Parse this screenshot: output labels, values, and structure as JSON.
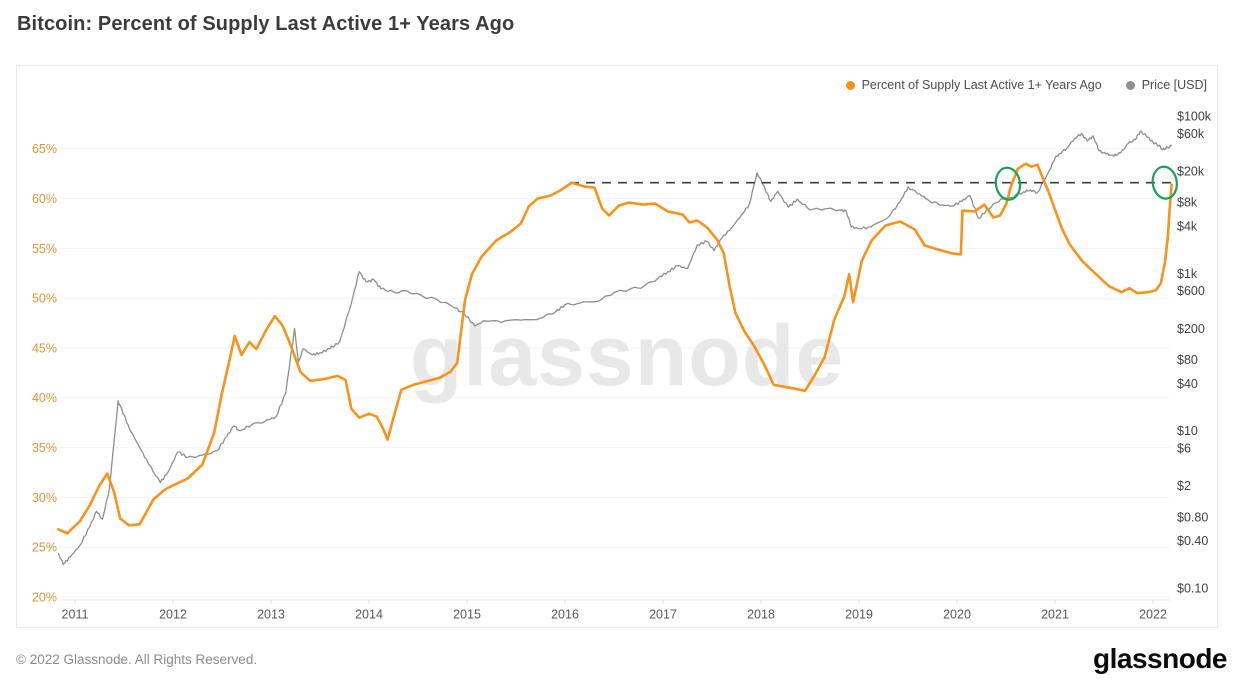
{
  "page": {
    "title": "Bitcoin: Percent of Supply Last Active 1+ Years Ago",
    "watermark": "glassnode",
    "footer_copyright": "© 2022 Glassnode. All Rights Reserved.",
    "brand_wordmark": "glassnode"
  },
  "legend": {
    "items": [
      {
        "label": "Percent of Supply Last Active 1+ Years Ago",
        "color": "#f7931a"
      },
      {
        "label": "Price [USD]",
        "color": "#8f8f8f"
      }
    ]
  },
  "chart_data": {
    "type": "line",
    "title": "Bitcoin: Percent of Supply Last Active 1+ Years Ago",
    "grid": {
      "horizontal": true,
      "vertical": false,
      "color": "#f3f3f3"
    },
    "x_axis": {
      "ticks": [
        2011,
        2012,
        2013,
        2014,
        2015,
        2016,
        2017,
        2018,
        2019,
        2020,
        2021,
        2022
      ],
      "range": [
        2010.82,
        2022.25
      ],
      "color": "#55585e"
    },
    "left_axis": {
      "title": "Percent of Supply Last Active 1+ Years Ago",
      "scale": "linear",
      "unit": "percent",
      "range": [
        20,
        65
      ],
      "color": "#df9539",
      "ticks": [
        {
          "value": 20,
          "label": "20%"
        },
        {
          "value": 25,
          "label": "25%"
        },
        {
          "value": 30,
          "label": "30%"
        },
        {
          "value": 35,
          "label": "35%"
        },
        {
          "value": 40,
          "label": "40%"
        },
        {
          "value": 45,
          "label": "45%"
        },
        {
          "value": 50,
          "label": "50%"
        },
        {
          "value": 55,
          "label": "55%"
        },
        {
          "value": 60,
          "label": "60%"
        },
        {
          "value": 65,
          "label": "65%"
        }
      ]
    },
    "right_axis": {
      "title": "Price [USD]",
      "scale": "log",
      "unit": "USD",
      "range": [
        0.1,
        100000
      ],
      "color": "#3c3f45",
      "ticks": [
        {
          "value": 100000,
          "label": "$100k"
        },
        {
          "value": 60000,
          "label": "$60k"
        },
        {
          "value": 20000,
          "label": "$20k"
        },
        {
          "value": 8000,
          "label": "$8k"
        },
        {
          "value": 4000,
          "label": "$4k"
        },
        {
          "value": 1000,
          "label": "$1k"
        },
        {
          "value": 600,
          "label": "$600"
        },
        {
          "value": 200,
          "label": "$200"
        },
        {
          "value": 80,
          "label": "$80"
        },
        {
          "value": 40,
          "label": "$40"
        },
        {
          "value": 10,
          "label": "$10"
        },
        {
          "value": 6,
          "label": "$6"
        },
        {
          "value": 2,
          "label": "$2"
        },
        {
          "value": 0.8,
          "label": "$0.80"
        },
        {
          "value": 0.4,
          "label": "$0.40"
        },
        {
          "value": 0.1,
          "label": "$0.10"
        }
      ]
    },
    "series": [
      {
        "name": "Percent of Supply Last Active 1+ Years Ago",
        "axis": "left",
        "color": "#f7931a",
        "width": 2.6,
        "points": [
          [
            2010.83,
            26.8
          ],
          [
            2010.92,
            26.4
          ],
          [
            2011.05,
            27.6
          ],
          [
            2011.15,
            29.2
          ],
          [
            2011.25,
            31.2
          ],
          [
            2011.33,
            32.4
          ],
          [
            2011.4,
            30.5
          ],
          [
            2011.46,
            27.9
          ],
          [
            2011.55,
            27.2
          ],
          [
            2011.66,
            27.3
          ],
          [
            2011.8,
            29.8
          ],
          [
            2011.92,
            30.8
          ],
          [
            2012.0,
            31.2
          ],
          [
            2012.15,
            31.9
          ],
          [
            2012.3,
            33.3
          ],
          [
            2012.42,
            36.5
          ],
          [
            2012.5,
            40.5
          ],
          [
            2012.57,
            43.5
          ],
          [
            2012.63,
            46.2
          ],
          [
            2012.7,
            44.3
          ],
          [
            2012.78,
            45.6
          ],
          [
            2012.85,
            44.9
          ],
          [
            2012.95,
            46.8
          ],
          [
            2013.04,
            48.2
          ],
          [
            2013.12,
            47.2
          ],
          [
            2013.2,
            45.3
          ],
          [
            2013.3,
            42.6
          ],
          [
            2013.4,
            41.7
          ],
          [
            2013.55,
            41.9
          ],
          [
            2013.68,
            42.2
          ],
          [
            2013.76,
            41.8
          ],
          [
            2013.82,
            38.9
          ],
          [
            2013.9,
            38.0
          ],
          [
            2014.0,
            38.4
          ],
          [
            2014.08,
            38.1
          ],
          [
            2014.14,
            37.0
          ],
          [
            2014.19,
            35.8
          ],
          [
            2014.25,
            38.0
          ],
          [
            2014.33,
            40.8
          ],
          [
            2014.45,
            41.3
          ],
          [
            2014.6,
            41.7
          ],
          [
            2014.72,
            42.0
          ],
          [
            2014.83,
            42.6
          ],
          [
            2014.9,
            43.5
          ],
          [
            2014.98,
            49.8
          ],
          [
            2015.05,
            52.4
          ],
          [
            2015.15,
            54.2
          ],
          [
            2015.3,
            55.8
          ],
          [
            2015.45,
            56.7
          ],
          [
            2015.55,
            57.5
          ],
          [
            2015.63,
            59.2
          ],
          [
            2015.72,
            60.0
          ],
          [
            2015.85,
            60.3
          ],
          [
            2015.95,
            60.8
          ],
          [
            2016.07,
            61.6
          ],
          [
            2016.2,
            61.2
          ],
          [
            2016.3,
            61.1
          ],
          [
            2016.38,
            59.0
          ],
          [
            2016.45,
            58.3
          ],
          [
            2016.55,
            59.3
          ],
          [
            2016.65,
            59.6
          ],
          [
            2016.8,
            59.4
          ],
          [
            2016.92,
            59.5
          ],
          [
            2017.05,
            58.7
          ],
          [
            2017.2,
            58.4
          ],
          [
            2017.27,
            57.6
          ],
          [
            2017.35,
            57.8
          ],
          [
            2017.45,
            57.1
          ],
          [
            2017.55,
            55.9
          ],
          [
            2017.62,
            54.5
          ],
          [
            2017.68,
            51.2
          ],
          [
            2017.74,
            48.5
          ],
          [
            2017.83,
            46.7
          ],
          [
            2017.93,
            45.2
          ],
          [
            2018.03,
            43.4
          ],
          [
            2018.13,
            41.3
          ],
          [
            2018.3,
            41.0
          ],
          [
            2018.45,
            40.7
          ],
          [
            2018.55,
            42.3
          ],
          [
            2018.65,
            44.1
          ],
          [
            2018.75,
            47.9
          ],
          [
            2018.85,
            50.2
          ],
          [
            2018.9,
            52.4
          ],
          [
            2018.94,
            49.6
          ],
          [
            2019.03,
            53.8
          ],
          [
            2019.13,
            55.8
          ],
          [
            2019.27,
            57.3
          ],
          [
            2019.42,
            57.7
          ],
          [
            2019.57,
            56.9
          ],
          [
            2019.67,
            55.3
          ],
          [
            2019.8,
            54.9
          ],
          [
            2019.95,
            54.5
          ],
          [
            2020.04,
            54.4
          ],
          [
            2020.055,
            58.8
          ],
          [
            2020.18,
            58.7
          ],
          [
            2020.28,
            59.4
          ],
          [
            2020.37,
            58.1
          ],
          [
            2020.44,
            58.3
          ],
          [
            2020.5,
            59.4
          ],
          [
            2020.55,
            61.2
          ],
          [
            2020.62,
            63.0
          ],
          [
            2020.7,
            63.5
          ],
          [
            2020.76,
            63.2
          ],
          [
            2020.82,
            63.4
          ],
          [
            2020.87,
            62.2
          ],
          [
            2020.93,
            60.8
          ],
          [
            2021.0,
            58.9
          ],
          [
            2021.07,
            57.0
          ],
          [
            2021.15,
            55.4
          ],
          [
            2021.28,
            53.7
          ],
          [
            2021.42,
            52.4
          ],
          [
            2021.55,
            51.2
          ],
          [
            2021.68,
            50.6
          ],
          [
            2021.76,
            51.0
          ],
          [
            2021.84,
            50.5
          ],
          [
            2021.95,
            50.6
          ],
          [
            2022.03,
            50.8
          ],
          [
            2022.08,
            51.5
          ],
          [
            2022.12,
            53.5
          ],
          [
            2022.15,
            56.0
          ],
          [
            2022.17,
            59.0
          ],
          [
            2022.19,
            61.4
          ]
        ]
      },
      {
        "name": "Price [USD]",
        "axis": "right",
        "color": "#8e8e8e",
        "width": 1.3,
        "points": [
          [
            2010.83,
            0.28
          ],
          [
            2010.88,
            0.2
          ],
          [
            2010.95,
            0.25
          ],
          [
            2011.05,
            0.35
          ],
          [
            2011.15,
            0.6
          ],
          [
            2011.22,
            0.95
          ],
          [
            2011.28,
            0.75
          ],
          [
            2011.35,
            1.8
          ],
          [
            2011.44,
            24
          ],
          [
            2011.5,
            16
          ],
          [
            2011.55,
            11
          ],
          [
            2011.65,
            6.5
          ],
          [
            2011.75,
            3.8
          ],
          [
            2011.87,
            2.2
          ],
          [
            2011.95,
            3.0
          ],
          [
            2012.05,
            5.4
          ],
          [
            2012.15,
            4.6
          ],
          [
            2012.3,
            4.9
          ],
          [
            2012.45,
            5.6
          ],
          [
            2012.55,
            8.5
          ],
          [
            2012.62,
            11.5
          ],
          [
            2012.68,
            10.0
          ],
          [
            2012.8,
            11.8
          ],
          [
            2012.95,
            13.5
          ],
          [
            2013.05,
            15
          ],
          [
            2013.15,
            30
          ],
          [
            2013.24,
            200
          ],
          [
            2013.28,
            75
          ],
          [
            2013.33,
            110
          ],
          [
            2013.42,
            92
          ],
          [
            2013.5,
            98
          ],
          [
            2013.6,
            110
          ],
          [
            2013.7,
            135
          ],
          [
            2013.82,
            420
          ],
          [
            2013.9,
            1050
          ],
          [
            2013.97,
            780
          ],
          [
            2014.05,
            830
          ],
          [
            2014.12,
            640
          ],
          [
            2014.25,
            580
          ],
          [
            2014.4,
            590
          ],
          [
            2014.55,
            510
          ],
          [
            2014.7,
            460
          ],
          [
            2014.85,
            380
          ],
          [
            2014.97,
            310
          ],
          [
            2015.08,
            215
          ],
          [
            2015.18,
            250
          ],
          [
            2015.35,
            238
          ],
          [
            2015.55,
            255
          ],
          [
            2015.75,
            270
          ],
          [
            2015.9,
            320
          ],
          [
            2016.0,
            400
          ],
          [
            2016.15,
            420
          ],
          [
            2016.35,
            450
          ],
          [
            2016.5,
            570
          ],
          [
            2016.65,
            620
          ],
          [
            2016.8,
            680
          ],
          [
            2016.95,
            870
          ],
          [
            2017.05,
            1050
          ],
          [
            2017.15,
            1250
          ],
          [
            2017.25,
            1150
          ],
          [
            2017.35,
            2300
          ],
          [
            2017.45,
            2550
          ],
          [
            2017.52,
            1950
          ],
          [
            2017.6,
            2800
          ],
          [
            2017.7,
            3800
          ],
          [
            2017.8,
            5500
          ],
          [
            2017.88,
            7500
          ],
          [
            2017.96,
            19000
          ],
          [
            2018.02,
            13500
          ],
          [
            2018.1,
            8200
          ],
          [
            2018.17,
            11000
          ],
          [
            2018.28,
            6900
          ],
          [
            2018.37,
            8800
          ],
          [
            2018.5,
            6400
          ],
          [
            2018.65,
            6600
          ],
          [
            2018.8,
            6400
          ],
          [
            2018.87,
            6200
          ],
          [
            2018.92,
            3900
          ],
          [
            2019.0,
            3700
          ],
          [
            2019.12,
            3900
          ],
          [
            2019.3,
            5200
          ],
          [
            2019.42,
            8200
          ],
          [
            2019.5,
            12500
          ],
          [
            2019.62,
            10200
          ],
          [
            2019.72,
            8300
          ],
          [
            2019.85,
            7400
          ],
          [
            2019.95,
            7200
          ],
          [
            2020.05,
            8200
          ],
          [
            2020.13,
            9800
          ],
          [
            2020.22,
            5000
          ],
          [
            2020.32,
            6600
          ],
          [
            2020.45,
            8900
          ],
          [
            2020.55,
            9200
          ],
          [
            2020.68,
            10900
          ],
          [
            2020.75,
            11500
          ],
          [
            2020.82,
            10600
          ],
          [
            2020.93,
            18800
          ],
          [
            2021.0,
            29000
          ],
          [
            2021.05,
            33500
          ],
          [
            2021.12,
            39000
          ],
          [
            2021.2,
            52000
          ],
          [
            2021.27,
            60000
          ],
          [
            2021.33,
            48000
          ],
          [
            2021.39,
            56000
          ],
          [
            2021.45,
            36000
          ],
          [
            2021.52,
            33000
          ],
          [
            2021.6,
            31000
          ],
          [
            2021.67,
            34000
          ],
          [
            2021.75,
            45000
          ],
          [
            2021.82,
            50000
          ],
          [
            2021.87,
            64000
          ],
          [
            2021.93,
            56000
          ],
          [
            2022.0,
            46500
          ],
          [
            2022.06,
            42000
          ],
          [
            2022.1,
            37500
          ],
          [
            2022.15,
            40000
          ],
          [
            2022.19,
            41500
          ]
        ]
      }
    ],
    "annotations": {
      "dashed_line": {
        "axis": "left",
        "value": 61.6,
        "from_year": 2016.05,
        "to_year": 2022.21,
        "color": "#3d3d3d"
      },
      "circles": [
        {
          "year": 2020.52,
          "value": 61.5,
          "color": "#18a15c"
        },
        {
          "year": 2022.12,
          "value": 61.6,
          "color": "#18a15c"
        }
      ]
    }
  }
}
